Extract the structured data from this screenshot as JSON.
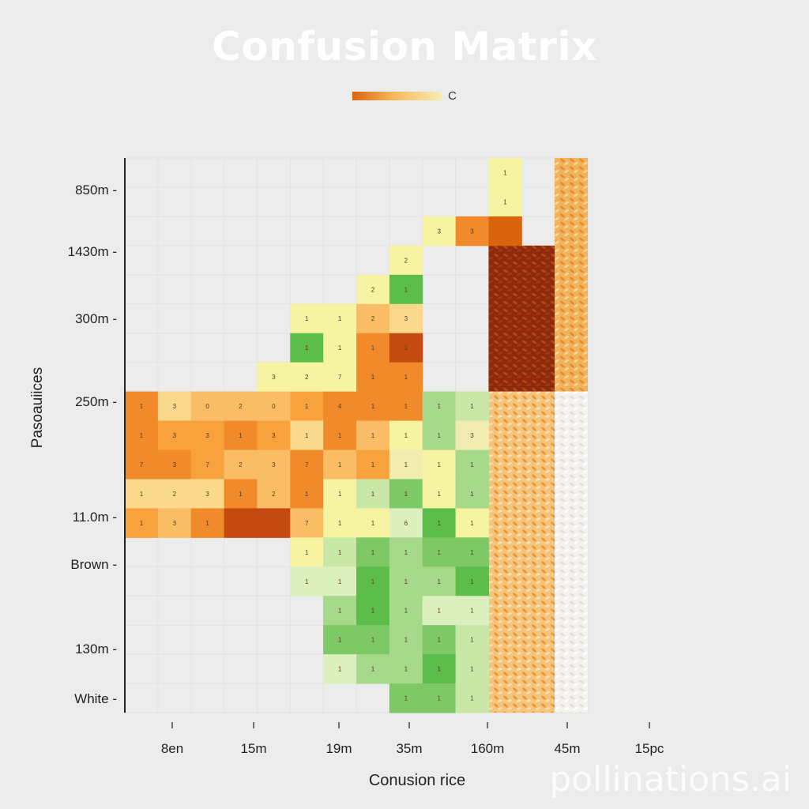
{
  "chart_data": {
    "type": "heatmap",
    "title": "Confusion Matrix",
    "xlabel": "Conusion rice",
    "ylabel": "Pasoauiices",
    "legend_label": "C",
    "legend_gradient": [
      "#d9640e",
      "#f7b75a",
      "#f5efb6"
    ],
    "y_tick_labels": [
      "850m",
      "1430m",
      "300m",
      "250m",
      "11.0m",
      "Brown",
      "130m",
      "White"
    ],
    "x_tick_labels": [
      "8en",
      "15m",
      "19m",
      "35m",
      "160m",
      "45m",
      "15pc"
    ],
    "grid": true,
    "n_rows": 19,
    "n_cols": 14,
    "palette": {
      "O1": "#f7a23c",
      "O2": "#f08a2b",
      "O3": "#f9bd65",
      "O4": "#fbd98c",
      "Y": "#f6f3a2",
      "Y2": "#f3ecb1",
      "R": "#c54a12",
      "R2": "#d9640e",
      "G": "#5dbd4a",
      "G1": "#7fc866",
      "G2": "#a6d98a",
      "G3": "#c9e8a8",
      "G4": "#dcefbf",
      "W": "#ececec"
    },
    "cells": [
      {
        "row": 0,
        "col": 11,
        "color": "Y",
        "label": "1"
      },
      {
        "row": 1,
        "col": 11,
        "color": "Y",
        "label": "1"
      },
      {
        "row": 2,
        "col": 9,
        "color": "Y",
        "label": "3"
      },
      {
        "row": 2,
        "col": 10,
        "color": "O2",
        "label": "3"
      },
      {
        "row": 2,
        "col": 11,
        "color": "R2",
        "label": ""
      },
      {
        "row": 3,
        "col": 8,
        "color": "Y",
        "label": "2"
      },
      {
        "row": 4,
        "col": 7,
        "color": "Y",
        "label": "2"
      },
      {
        "row": 4,
        "col": 8,
        "color": "G",
        "label": "1"
      },
      {
        "row": 5,
        "col": 5,
        "color": "Y",
        "label": "1"
      },
      {
        "row": 5,
        "col": 6,
        "color": "Y",
        "label": "1"
      },
      {
        "row": 5,
        "col": 7,
        "color": "O3",
        "label": "2"
      },
      {
        "row": 5,
        "col": 8,
        "color": "O4",
        "label": "3"
      },
      {
        "row": 6,
        "col": 5,
        "color": "G",
        "label": "1"
      },
      {
        "row": 6,
        "col": 6,
        "color": "Y",
        "label": "1"
      },
      {
        "row": 6,
        "col": 7,
        "color": "O2",
        "label": "1"
      },
      {
        "row": 6,
        "col": 8,
        "color": "R",
        "label": "1"
      },
      {
        "row": 7,
        "col": 4,
        "color": "Y",
        "label": "3"
      },
      {
        "row": 7,
        "col": 5,
        "color": "Y",
        "label": "2"
      },
      {
        "row": 7,
        "col": 6,
        "color": "Y",
        "label": "7"
      },
      {
        "row": 7,
        "col": 7,
        "color": "O2",
        "label": "1"
      },
      {
        "row": 7,
        "col": 8,
        "color": "O2",
        "label": "1"
      },
      {
        "row": 8,
        "col": 0,
        "color": "O2",
        "label": "1"
      },
      {
        "row": 8,
        "col": 1,
        "color": "O4",
        "label": "3"
      },
      {
        "row": 8,
        "col": 2,
        "color": "O3",
        "label": "0"
      },
      {
        "row": 8,
        "col": 3,
        "color": "O3",
        "label": "2"
      },
      {
        "row": 8,
        "col": 4,
        "color": "O3",
        "label": "0"
      },
      {
        "row": 8,
        "col": 5,
        "color": "O1",
        "label": "1"
      },
      {
        "row": 8,
        "col": 6,
        "color": "O2",
        "label": "4"
      },
      {
        "row": 8,
        "col": 7,
        "color": "O2",
        "label": "1"
      },
      {
        "row": 8,
        "col": 8,
        "color": "O2",
        "label": "1"
      },
      {
        "row": 8,
        "col": 9,
        "color": "G2",
        "label": "1"
      },
      {
        "row": 8,
        "col": 10,
        "color": "G3",
        "label": "1"
      },
      {
        "row": 9,
        "col": 0,
        "color": "O2",
        "label": "1"
      },
      {
        "row": 9,
        "col": 1,
        "color": "O1",
        "label": "3"
      },
      {
        "row": 9,
        "col": 2,
        "color": "O1",
        "label": "3"
      },
      {
        "row": 9,
        "col": 3,
        "color": "O2",
        "label": "1"
      },
      {
        "row": 9,
        "col": 4,
        "color": "O1",
        "label": "3"
      },
      {
        "row": 9,
        "col": 5,
        "color": "O4",
        "label": "1"
      },
      {
        "row": 9,
        "col": 6,
        "color": "O2",
        "label": "1"
      },
      {
        "row": 9,
        "col": 7,
        "color": "O3",
        "label": "1"
      },
      {
        "row": 9,
        "col": 8,
        "color": "Y",
        "label": "1"
      },
      {
        "row": 9,
        "col": 9,
        "color": "G2",
        "label": "1"
      },
      {
        "row": 9,
        "col": 10,
        "color": "Y2",
        "label": "3"
      },
      {
        "row": 10,
        "col": 0,
        "color": "O2",
        "label": "7"
      },
      {
        "row": 10,
        "col": 1,
        "color": "O2",
        "label": "3"
      },
      {
        "row": 10,
        "col": 2,
        "color": "O1",
        "label": "7"
      },
      {
        "row": 10,
        "col": 3,
        "color": "O3",
        "label": "2"
      },
      {
        "row": 10,
        "col": 4,
        "color": "O3",
        "label": "3"
      },
      {
        "row": 10,
        "col": 5,
        "color": "O2",
        "label": "7"
      },
      {
        "row": 10,
        "col": 6,
        "color": "O3",
        "label": "1"
      },
      {
        "row": 10,
        "col": 7,
        "color": "O1",
        "label": "1"
      },
      {
        "row": 10,
        "col": 8,
        "color": "Y2",
        "label": "1"
      },
      {
        "row": 10,
        "col": 9,
        "color": "Y",
        "label": "1"
      },
      {
        "row": 10,
        "col": 10,
        "color": "G2",
        "label": "1"
      },
      {
        "row": 11,
        "col": 0,
        "color": "O4",
        "label": "1"
      },
      {
        "row": 11,
        "col": 1,
        "color": "O4",
        "label": "2"
      },
      {
        "row": 11,
        "col": 2,
        "color": "O4",
        "label": "3"
      },
      {
        "row": 11,
        "col": 3,
        "color": "O2",
        "label": "1"
      },
      {
        "row": 11,
        "col": 4,
        "color": "O3",
        "label": "2"
      },
      {
        "row": 11,
        "col": 5,
        "color": "O2",
        "label": "1"
      },
      {
        "row": 11,
        "col": 6,
        "color": "Y",
        "label": "1"
      },
      {
        "row": 11,
        "col": 7,
        "color": "G3",
        "label": "1"
      },
      {
        "row": 11,
        "col": 8,
        "color": "G1",
        "label": "1"
      },
      {
        "row": 11,
        "col": 9,
        "color": "Y",
        "label": "1"
      },
      {
        "row": 11,
        "col": 10,
        "color": "G2",
        "label": "1"
      },
      {
        "row": 12,
        "col": 0,
        "color": "O1",
        "label": "1"
      },
      {
        "row": 12,
        "col": 1,
        "color": "O3",
        "label": "3"
      },
      {
        "row": 12,
        "col": 2,
        "color": "O2",
        "label": "1"
      },
      {
        "row": 12,
        "col": 3,
        "color": "R",
        "label": ""
      },
      {
        "row": 12,
        "col": 4,
        "color": "R",
        "label": ""
      },
      {
        "row": 12,
        "col": 5,
        "color": "O3",
        "label": "7"
      },
      {
        "row": 12,
        "col": 6,
        "color": "Y",
        "label": "1"
      },
      {
        "row": 12,
        "col": 7,
        "color": "Y",
        "label": "1"
      },
      {
        "row": 12,
        "col": 8,
        "color": "G4",
        "label": "6"
      },
      {
        "row": 12,
        "col": 9,
        "color": "G",
        "label": "1"
      },
      {
        "row": 12,
        "col": 10,
        "color": "Y",
        "label": "1"
      },
      {
        "row": 13,
        "col": 5,
        "color": "Y",
        "label": "1"
      },
      {
        "row": 13,
        "col": 6,
        "color": "G3",
        "label": "1"
      },
      {
        "row": 13,
        "col": 7,
        "color": "G1",
        "label": "1"
      },
      {
        "row": 13,
        "col": 8,
        "color": "G2",
        "label": "1"
      },
      {
        "row": 13,
        "col": 9,
        "color": "G1",
        "label": "1"
      },
      {
        "row": 13,
        "col": 10,
        "color": "G1",
        "label": "1"
      },
      {
        "row": 14,
        "col": 5,
        "color": "G4",
        "label": "1"
      },
      {
        "row": 14,
        "col": 6,
        "color": "G4",
        "label": "1"
      },
      {
        "row": 14,
        "col": 7,
        "color": "G",
        "label": "1"
      },
      {
        "row": 14,
        "col": 8,
        "color": "G2",
        "label": "1"
      },
      {
        "row": 14,
        "col": 9,
        "color": "G2",
        "label": "1"
      },
      {
        "row": 14,
        "col": 10,
        "color": "G",
        "label": "1"
      },
      {
        "row": 15,
        "col": 6,
        "color": "G2",
        "label": "1"
      },
      {
        "row": 15,
        "col": 7,
        "color": "G",
        "label": "1"
      },
      {
        "row": 15,
        "col": 8,
        "color": "G2",
        "label": "1"
      },
      {
        "row": 15,
        "col": 9,
        "color": "G4",
        "label": "1"
      },
      {
        "row": 15,
        "col": 10,
        "color": "G4",
        "label": "1"
      },
      {
        "row": 16,
        "col": 6,
        "color": "G1",
        "label": "1"
      },
      {
        "row": 16,
        "col": 7,
        "color": "G1",
        "label": "1"
      },
      {
        "row": 16,
        "col": 8,
        "color": "G2",
        "label": "1"
      },
      {
        "row": 16,
        "col": 9,
        "color": "G1",
        "label": "1"
      },
      {
        "row": 16,
        "col": 10,
        "color": "G3",
        "label": "1"
      },
      {
        "row": 17,
        "col": 6,
        "color": "G4",
        "label": "1"
      },
      {
        "row": 17,
        "col": 7,
        "color": "G2",
        "label": "1"
      },
      {
        "row": 17,
        "col": 8,
        "color": "G2",
        "label": "1"
      },
      {
        "row": 17,
        "col": 9,
        "color": "G",
        "label": "1"
      },
      {
        "row": 17,
        "col": 10,
        "color": "G3",
        "label": "1"
      },
      {
        "row": 18,
        "col": 8,
        "color": "G1",
        "label": "1"
      },
      {
        "row": 18,
        "col": 9,
        "color": "G1",
        "label": "1"
      },
      {
        "row": 18,
        "col": 10,
        "color": "G3",
        "label": "1"
      }
    ],
    "texture_blocks": [
      {
        "name": "texture-brown-rice-dark",
        "row_start": 3,
        "row_end": 8,
        "col_start": 11,
        "col_end": 13,
        "color": "#8e2a0c",
        "grain": "#b8471a"
      },
      {
        "name": "texture-orange-rice-top",
        "row_start": 0,
        "row_end": 8,
        "col_start": 13,
        "col_end": 14,
        "color": "#f0b35a",
        "grain": "#e88a2a"
      },
      {
        "name": "texture-orange-rice-mid",
        "row_start": 8,
        "row_end": 19,
        "col_start": 11,
        "col_end": 13,
        "color": "#f4c47a",
        "grain": "#e89434"
      },
      {
        "name": "texture-white-rice",
        "row_start": 8,
        "row_end": 19,
        "col_start": 13,
        "col_end": 14,
        "color": "#f4f2ee",
        "grain": "#e3ded6"
      }
    ]
  },
  "watermark": "pollinations.ai"
}
